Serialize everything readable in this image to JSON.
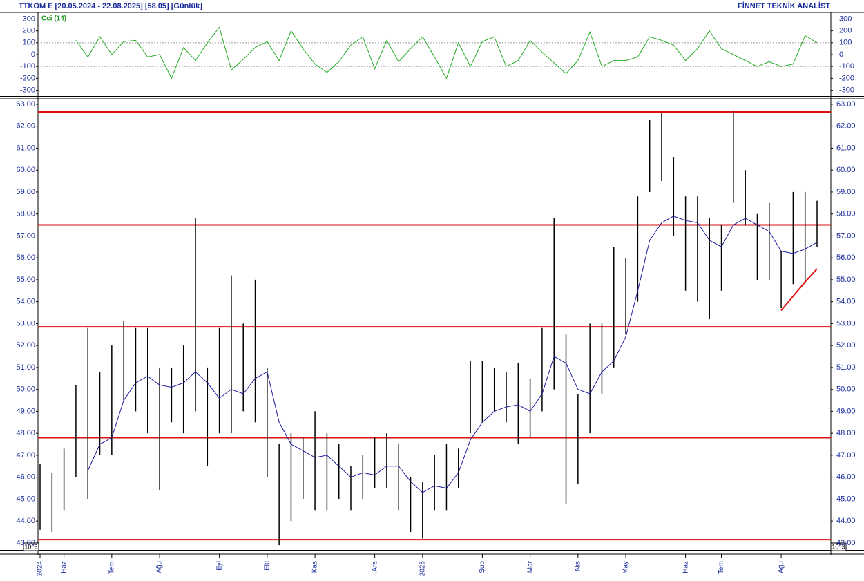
{
  "chart_data": {
    "type": "ohlc",
    "title": "TTKOM E  [20.05.2024 - 22.08.2025]  [58.05]  [Günlük]",
    "source": "FİNNET TEKNİK ANALİST",
    "indicator_label": "Cci (14)",
    "scale_label": "10^3",
    "categories": [
      "2024",
      null,
      "Haz",
      null,
      null,
      null,
      "Tem",
      null,
      null,
      null,
      "Ağu",
      null,
      null,
      null,
      null,
      "Eyl",
      null,
      null,
      null,
      "Eki",
      null,
      null,
      null,
      "Kas",
      null,
      null,
      null,
      null,
      "Ara",
      null,
      null,
      null,
      "2025",
      null,
      null,
      null,
      null,
      "Şub",
      null,
      null,
      null,
      "Mar",
      null,
      null,
      null,
      "Nis",
      null,
      null,
      null,
      "May",
      null,
      null,
      null,
      null,
      "Haz",
      null,
      null,
      "Tem",
      null,
      null,
      null,
      null,
      "Ağu",
      null,
      null,
      null
    ],
    "high": [
      46.6,
      46.2,
      47.3,
      50.2,
      52.8,
      50.8,
      52.0,
      53.1,
      52.8,
      52.8,
      51.0,
      51.0,
      52.0,
      57.8,
      51.0,
      52.8,
      55.2,
      53.0,
      55.0,
      51.0,
      47.5,
      48.0,
      47.8,
      49.0,
      48.0,
      47.5,
      46.5,
      47.0,
      47.8,
      48.0,
      47.5,
      46.0,
      45.8,
      47.0,
      47.5,
      47.3,
      51.3,
      51.3,
      51.0,
      50.8,
      51.2,
      50.5,
      52.8,
      57.8,
      52.5,
      49.8,
      53.0,
      53.0,
      56.5,
      56.0,
      58.8,
      62.3,
      62.6,
      60.6,
      58.8,
      58.8,
      57.8,
      57.5,
      62.7,
      60.0,
      58.0,
      58.5,
      56.3,
      59.0,
      59.0,
      58.6
    ],
    "low": [
      43.6,
      43.5,
      44.5,
      46.0,
      45.0,
      47.0,
      47.0,
      49.5,
      49.0,
      48.0,
      45.4,
      48.5,
      48.0,
      49.0,
      46.5,
      48.0,
      48.0,
      49.0,
      48.5,
      46.0,
      42.9,
      44.0,
      45.0,
      44.5,
      44.5,
      45.0,
      44.5,
      45.0,
      45.5,
      45.5,
      44.5,
      43.5,
      43.2,
      44.5,
      44.5,
      45.5,
      48.0,
      48.5,
      49.0,
      48.5,
      47.5,
      47.8,
      49.0,
      50.0,
      44.8,
      45.7,
      48.0,
      49.8,
      51.0,
      52.5,
      54.0,
      59.0,
      59.5,
      57.0,
      54.5,
      54.0,
      53.2,
      54.5,
      58.5,
      57.5,
      55.0,
      55.0,
      53.7,
      54.8,
      55.0,
      56.5
    ],
    "bar_color": "#000000",
    "ma": {
      "color": "#1a1aa0",
      "values": [
        null,
        null,
        null,
        null,
        46.3,
        47.5,
        47.8,
        49.5,
        50.3,
        50.6,
        50.2,
        50.1,
        50.3,
        50.8,
        50.3,
        49.6,
        50.0,
        49.8,
        50.5,
        50.8,
        48.5,
        47.5,
        47.2,
        46.9,
        47.0,
        46.5,
        46.0,
        46.2,
        46.1,
        46.5,
        46.5,
        45.8,
        45.3,
        45.6,
        45.5,
        46.2,
        47.7,
        48.5,
        49.0,
        49.2,
        49.3,
        49.0,
        49.8,
        51.5,
        51.2,
        50.0,
        49.8,
        50.8,
        51.3,
        52.4,
        54.5,
        56.8,
        57.6,
        57.9,
        57.7,
        57.6,
        56.8,
        56.5,
        57.5,
        57.8,
        57.5,
        57.2,
        56.3,
        56.2,
        56.4,
        56.7
      ]
    },
    "trend": {
      "color": "#dd1111",
      "values": [
        null,
        null,
        null,
        null,
        null,
        null,
        null,
        null,
        null,
        null,
        null,
        null,
        null,
        null,
        null,
        null,
        null,
        null,
        null,
        null,
        null,
        null,
        null,
        null,
        null,
        null,
        null,
        null,
        null,
        null,
        null,
        null,
        null,
        null,
        null,
        null,
        null,
        null,
        null,
        null,
        null,
        null,
        null,
        null,
        null,
        null,
        null,
        null,
        null,
        null,
        null,
        null,
        null,
        null,
        null,
        null,
        null,
        null,
        null,
        null,
        null,
        null,
        53.6,
        54.25,
        54.9,
        55.5
      ]
    },
    "levels": [
      62.65,
      57.5,
      52.85,
      47.8,
      43.15
    ],
    "level_color": "#dd1111",
    "ylim": [
      42.65,
      63.25
    ],
    "yticks": [
      {
        "value": 43,
        "label": "43.00"
      },
      {
        "value": 44,
        "label": "44.00"
      },
      {
        "value": 45,
        "label": "45.00"
      },
      {
        "value": 46,
        "label": "46.00"
      },
      {
        "value": 47,
        "label": "47.00"
      },
      {
        "value": 48,
        "label": "48.00"
      },
      {
        "value": 49,
        "label": "49.00"
      },
      {
        "value": 50,
        "label": "50.00"
      },
      {
        "value": 51,
        "label": "51.00"
      },
      {
        "value": 52,
        "label": "52.00"
      },
      {
        "value": 53,
        "label": "53.00"
      },
      {
        "value": 54,
        "label": "54.00"
      },
      {
        "value": 55,
        "label": "55.00"
      },
      {
        "value": 56,
        "label": "56.00"
      },
      {
        "value": 57,
        "label": "57.00"
      },
      {
        "value": 58,
        "label": "58.00"
      },
      {
        "value": 59,
        "label": "59.00"
      },
      {
        "value": 60,
        "label": "60.00"
      },
      {
        "value": 61,
        "label": "61.00"
      },
      {
        "value": 62,
        "label": "62.00"
      },
      {
        "value": 63,
        "label": "63.00"
      }
    ],
    "cci": {
      "color": "#22aa22",
      "values": [
        null,
        null,
        null,
        120,
        -20,
        150,
        0,
        110,
        120,
        -20,
        0,
        -200,
        60,
        -50,
        100,
        230,
        -130,
        -40,
        60,
        110,
        -50,
        200,
        50,
        -80,
        -150,
        -60,
        80,
        150,
        -120,
        120,
        -60,
        50,
        150,
        -20,
        -200,
        100,
        -100,
        110,
        150,
        -100,
        -50,
        120,
        20,
        -70,
        -160,
        -50,
        190,
        -100,
        -50,
        -50,
        -20,
        150,
        120,
        80,
        -50,
        50,
        200,
        50,
        0,
        -50,
        -100,
        -60,
        -100,
        -80,
        160,
        100
      ]
    },
    "y2lim": [
      -355,
      355
    ],
    "y2ticks": [
      300,
      200,
      100,
      0,
      -100,
      -200,
      -300
    ],
    "y2_guides": [
      100,
      -100
    ]
  }
}
